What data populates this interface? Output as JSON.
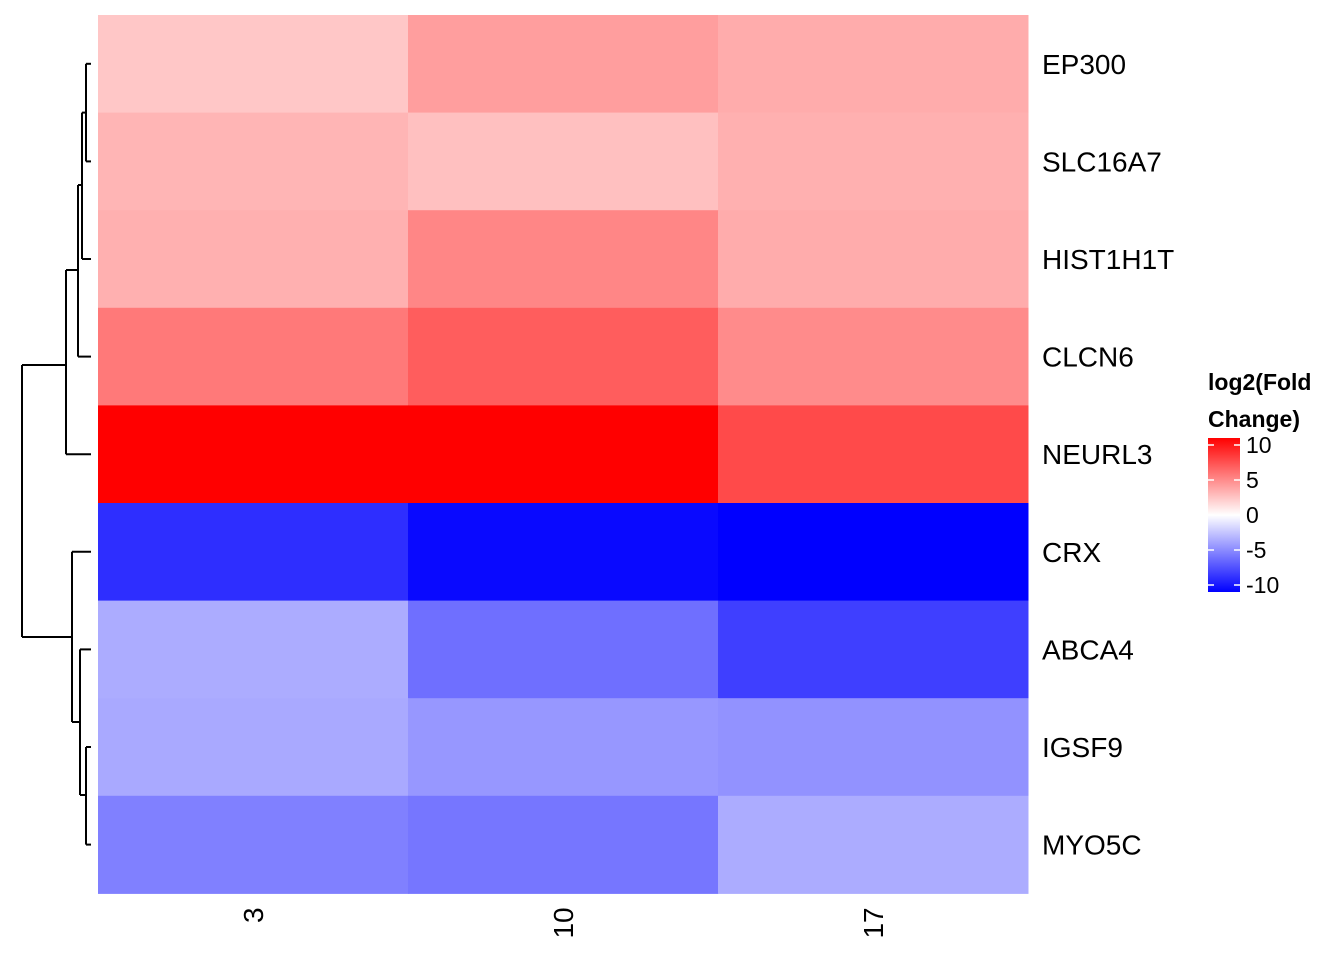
{
  "chart_data": {
    "type": "heatmap",
    "columns": [
      "3",
      "10",
      "17"
    ],
    "rows": [
      "EP300",
      "SLC16A7",
      "HIST1H1T",
      "CLCN6",
      "NEURL3",
      "CRX",
      "ABCA4",
      "IGSF9",
      "MYO5C"
    ],
    "values": [
      [
        2.4,
        4.2,
        3.6
      ],
      [
        3.2,
        2.7,
        3.4
      ],
      [
        3.4,
        5.2,
        3.6
      ],
      [
        5.8,
        7.0,
        5.0
      ],
      [
        11.0,
        11.0,
        7.8
      ],
      [
        -9.0,
        -10.6,
        -11.0
      ],
      [
        -3.6,
        -6.2,
        -8.3
      ],
      [
        -3.7,
        -4.5,
        -4.7
      ],
      [
        -5.5,
        -5.9,
        -3.6
      ]
    ],
    "color_scale": {
      "low": "#0000ff",
      "mid": "#ffffff",
      "high": "#ff0000",
      "min": -11,
      "max": 11
    },
    "legend": {
      "title_line1": "log2(Fold",
      "title_line2": "Change)",
      "ticks": [
        10,
        5,
        0,
        -5,
        -10
      ]
    },
    "row_dendrogram": true,
    "xlabel": "",
    "ylabel": ""
  }
}
